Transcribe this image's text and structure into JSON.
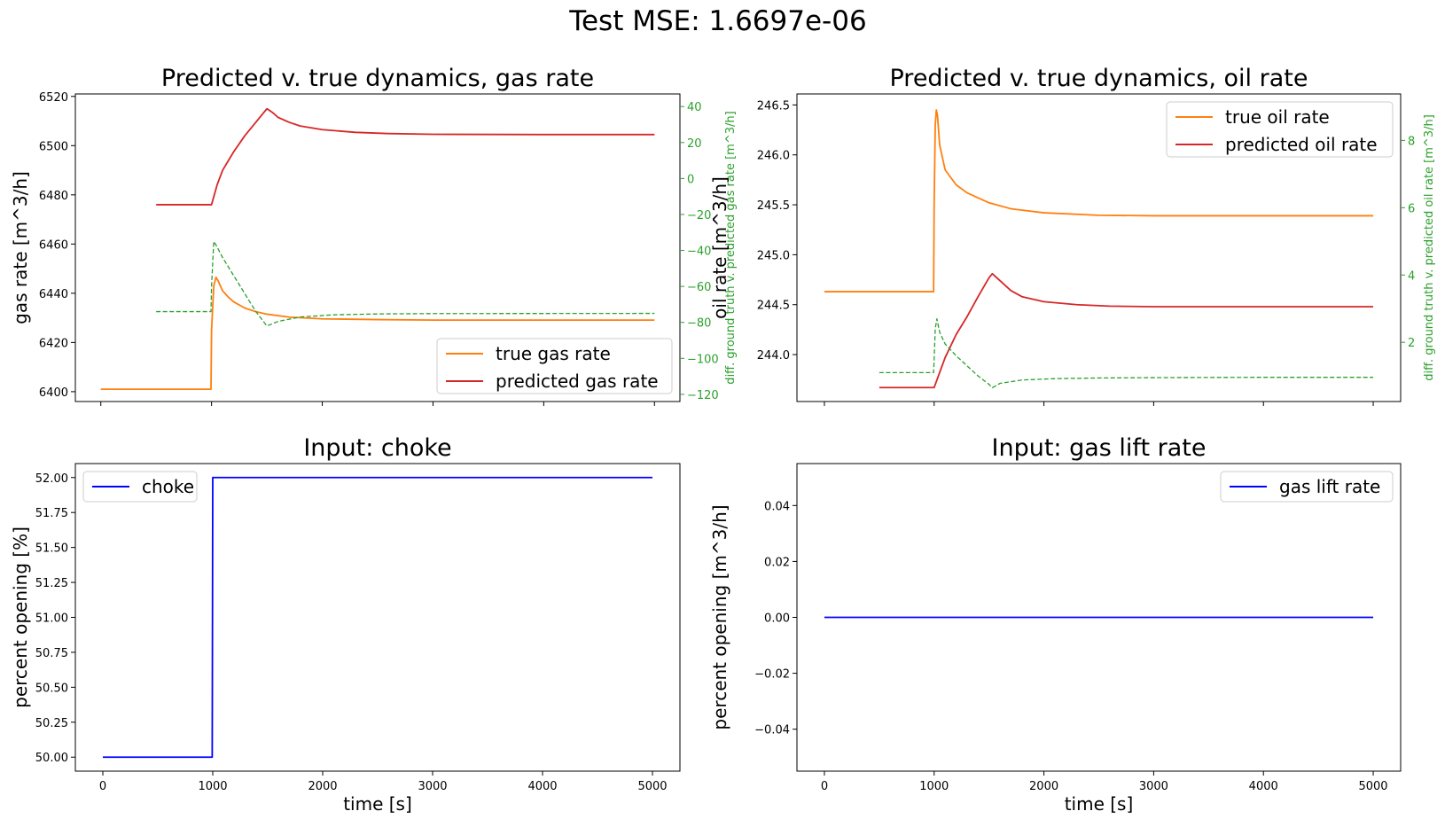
{
  "suptitle": "Test MSE: 1.6697e-06",
  "chart_data": [
    {
      "type": "line",
      "title": "Predicted v. true dynamics, gas rate",
      "xlabel": "",
      "ylabel": "gas rate [m^3/h]",
      "y2label": "diff. ground truth v. predicted gas rate [m^3/h]",
      "xlim": [
        -230,
        5230
      ],
      "ylim": [
        6396,
        6521
      ],
      "y2lim": [
        -124,
        47
      ],
      "xticks": [
        0,
        1000,
        2000,
        3000,
        4000,
        5000
      ],
      "show_xticklabels": false,
      "yticks": [
        6400,
        6420,
        6440,
        6460,
        6480,
        6500,
        6520
      ],
      "y2ticks": [
        -120,
        -100,
        -80,
        -60,
        -40,
        -20,
        0,
        20,
        40
      ],
      "grid": false,
      "legend_position": "lower-right",
      "series": [
        {
          "name": "true gas rate",
          "color": "#ff7f0e",
          "dashed": false,
          "axis": "left",
          "x": [
            0,
            995,
            1000,
            1020,
            1040,
            1060,
            1100,
            1150,
            1200,
            1300,
            1400,
            1500,
            1700,
            2000,
            2500,
            3000,
            4000,
            5000
          ],
          "y": [
            6401,
            6401,
            6425,
            6443,
            6446.5,
            6445,
            6441,
            6438.5,
            6436.5,
            6434,
            6432.5,
            6431.5,
            6430.3,
            6429.6,
            6429.3,
            6429.1,
            6429.1,
            6429.1
          ]
        },
        {
          "name": "predicted gas rate",
          "color": "#d62728",
          "dashed": false,
          "axis": "left",
          "x": [
            500,
            1000,
            1050,
            1100,
            1200,
            1300,
            1400,
            1500,
            1550,
            1600,
            1700,
            1800,
            2000,
            2300,
            2600,
            3000,
            4000,
            5000
          ],
          "y": [
            6476,
            6476,
            6484,
            6490,
            6497.5,
            6504,
            6509.5,
            6515,
            6513.5,
            6511.5,
            6509.5,
            6508,
            6506.5,
            6505.4,
            6504.9,
            6504.6,
            6504.5,
            6504.5
          ]
        },
        {
          "name": "diff",
          "color": "#2ca02c",
          "dashed": true,
          "axis": "right",
          "x": [
            500,
            995,
            1000,
            1020,
            1050,
            1100,
            1200,
            1300,
            1400,
            1500,
            1600,
            1800,
            2100,
            2500,
            3000,
            5000
          ],
          "y": [
            -74,
            -74,
            -60,
            -35,
            -38,
            -44,
            -54,
            -64,
            -74,
            -82,
            -79.5,
            -77,
            -75.8,
            -75.3,
            -75.1,
            -75
          ]
        }
      ]
    },
    {
      "type": "line",
      "title": "Predicted v. true dynamics, oil rate",
      "xlabel": "",
      "ylabel": "oil rate [m^3/h]",
      "y2label": "diff. ground truth v. predicted oil rate [m^3/h]",
      "xlim": [
        -250,
        5250
      ],
      "ylim": [
        243.53,
        246.61
      ],
      "y2lim": [
        0.24,
        9.38
      ],
      "xticks": [
        0,
        1000,
        2000,
        3000,
        4000,
        5000
      ],
      "show_xticklabels": false,
      "yticks": [
        244.0,
        244.5,
        245.0,
        245.5,
        246.0,
        246.5
      ],
      "y2ticks": [
        2,
        4,
        6,
        8
      ],
      "grid": false,
      "legend_position": "upper-right",
      "series": [
        {
          "name": "true oil rate",
          "color": "#ff7f0e",
          "dashed": false,
          "axis": "left",
          "x": [
            0,
            995,
            1000,
            1010,
            1020,
            1030,
            1050,
            1100,
            1200,
            1300,
            1500,
            1700,
            2000,
            2500,
            3000,
            4000,
            5000
          ],
          "y": [
            244.63,
            244.63,
            245.5,
            246.3,
            246.45,
            246.4,
            246.1,
            245.85,
            245.7,
            245.62,
            245.52,
            245.46,
            245.42,
            245.395,
            245.39,
            245.39,
            245.39
          ]
        },
        {
          "name": "predicted oil rate",
          "color": "#d62728",
          "dashed": false,
          "axis": "left",
          "x": [
            500,
            1000,
            1050,
            1100,
            1200,
            1300,
            1400,
            1500,
            1530,
            1600,
            1700,
            1800,
            2000,
            2300,
            2600,
            3000,
            4000,
            5000
          ],
          "y": [
            243.67,
            243.67,
            243.82,
            243.97,
            244.2,
            244.38,
            244.58,
            244.77,
            244.81,
            244.74,
            244.64,
            244.58,
            244.53,
            244.5,
            244.485,
            244.48,
            244.48,
            244.48
          ]
        },
        {
          "name": "diff",
          "color": "#2ca02c",
          "dashed": true,
          "axis": "right",
          "x": [
            500,
            995,
            1000,
            1010,
            1025,
            1050,
            1100,
            1200,
            1300,
            1400,
            1500,
            1530,
            1600,
            1800,
            2100,
            2500,
            3000,
            4000,
            5000
          ],
          "y": [
            1.1,
            1.1,
            1.5,
            2.4,
            2.7,
            2.3,
            1.95,
            1.6,
            1.3,
            1.0,
            0.75,
            0.65,
            0.78,
            0.88,
            0.92,
            0.94,
            0.95,
            0.96,
            0.96
          ]
        }
      ]
    },
    {
      "type": "line",
      "title": "Input: choke",
      "xlabel": "time [s]",
      "ylabel": "percent opening [%]",
      "xlim": [
        -250,
        5250
      ],
      "ylim": [
        49.9,
        52.1
      ],
      "xticks": [
        0,
        1000,
        2000,
        3000,
        4000,
        5000
      ],
      "show_xticklabels": true,
      "yticks": [
        50.0,
        50.25,
        50.5,
        50.75,
        51.0,
        51.25,
        51.5,
        51.75,
        52.0
      ],
      "grid": false,
      "legend_position": "upper-left",
      "series": [
        {
          "name": "choke",
          "color": "#0000ff",
          "dashed": false,
          "axis": "left",
          "x": [
            0,
            995,
            1000,
            5000
          ],
          "y": [
            50.0,
            50.0,
            52.0,
            52.0
          ]
        }
      ]
    },
    {
      "type": "line",
      "title": "Input: gas lift rate",
      "xlabel": "time [s]",
      "ylabel": "percent opening [m^3/h]",
      "xlim": [
        -250,
        5250
      ],
      "ylim": [
        -0.055,
        0.055
      ],
      "xticks": [
        0,
        1000,
        2000,
        3000,
        4000,
        5000
      ],
      "show_xticklabels": true,
      "yticks": [
        -0.04,
        -0.02,
        0.0,
        0.02,
        0.04
      ],
      "grid": false,
      "legend_position": "upper-right",
      "series": [
        {
          "name": "gas lift rate",
          "color": "#0000ff",
          "dashed": false,
          "axis": "left",
          "x": [
            0,
            5000
          ],
          "y": [
            0,
            0
          ]
        }
      ]
    }
  ]
}
